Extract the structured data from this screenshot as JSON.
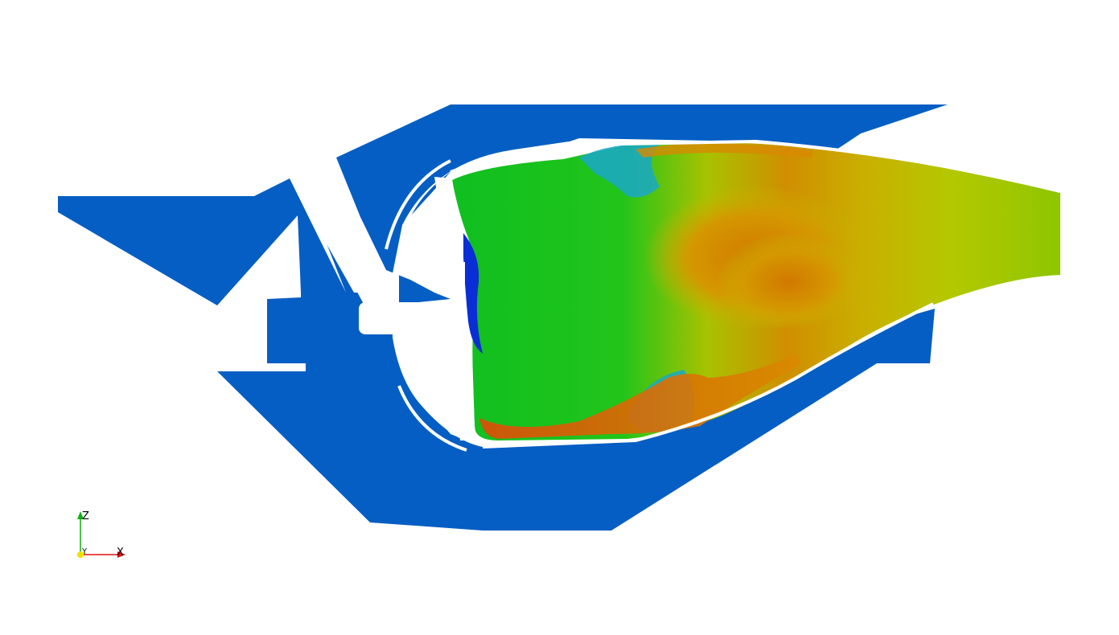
{
  "colors": {
    "background": "#ffffff",
    "solid_region": "#055ec3",
    "contour_low": "#0a2ed6",
    "contour_cool": "#1ab84a",
    "contour_mid": "#0fc41a",
    "contour_warm": "#c8c400",
    "contour_hot": "#d88a00",
    "contour_peak": "#d23c0a",
    "axis_x": "#e01010",
    "axis_y": "#f0e000",
    "axis_z": "#10b010"
  },
  "orientation_axes": {
    "z_label": "Z",
    "y_label": "Y",
    "x_label": "X"
  }
}
